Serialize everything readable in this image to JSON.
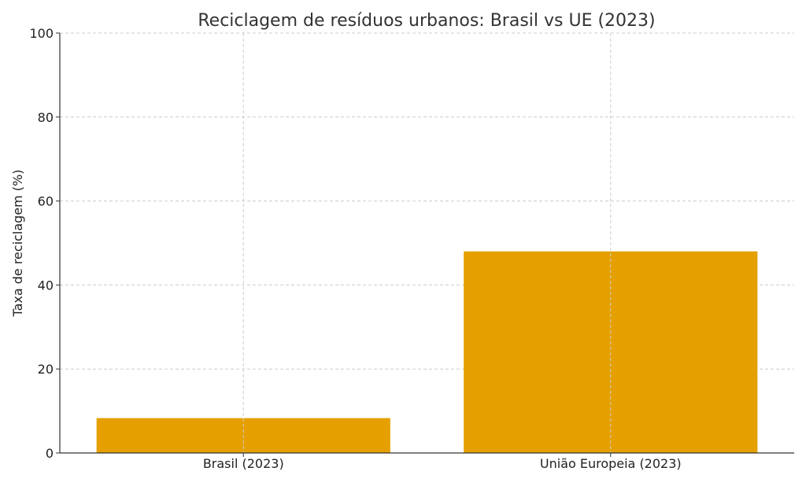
{
  "chart_data": {
    "type": "bar",
    "title": "Reciclagem de resíduos urbanos: Brasil vs UE (2023)",
    "xlabel": "",
    "ylabel": "Taxa de reciclagem (%)",
    "categories": [
      "Brasil (2023)",
      "União Europeia (2023)"
    ],
    "values": [
      8.3,
      48
    ],
    "ylim": [
      0,
      100
    ],
    "yticks": [
      0,
      20,
      40,
      60,
      80,
      100
    ],
    "grid": true,
    "bar_color": "#e5a000"
  }
}
